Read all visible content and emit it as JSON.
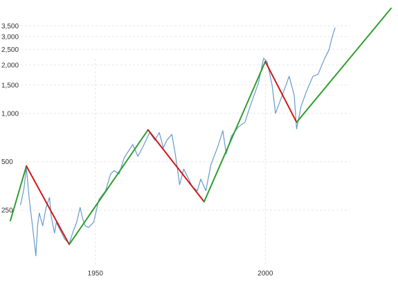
{
  "chart_data": {
    "type": "line",
    "title": "",
    "xlabel": "",
    "ylabel": "",
    "y_scale": "log",
    "xlim": [
      1925,
      2037
    ],
    "ylim": [
      115,
      4500
    ],
    "grid": true,
    "x_ticks": [
      {
        "value": 1950,
        "label": "1950"
      },
      {
        "value": 2000,
        "label": "2000"
      }
    ],
    "y_ticks": [
      {
        "value": 250,
        "label": "250"
      },
      {
        "value": 500,
        "label": "500"
      },
      {
        "value": 1000,
        "label": "1,000"
      },
      {
        "value": 1500,
        "label": "1,500"
      },
      {
        "value": 2000,
        "label": "2,000"
      },
      {
        "value": 2500,
        "label": "2,500"
      },
      {
        "value": 3000,
        "label": "3,000"
      },
      {
        "value": 3500,
        "label": "3,500"
      }
    ],
    "series": [
      {
        "color": "#6699cc",
        "x": [
          1928,
          1929,
          1929.7,
          1930.5,
          1931.5,
          1932.5,
          1933,
          1933.5,
          1934.5,
          1935.5,
          1936.5,
          1937,
          1938,
          1938.5,
          1939.5,
          1941,
          1942.3,
          1943.5,
          1944.5,
          1945.5,
          1946.3,
          1947,
          1948,
          1949.5,
          1951,
          1953,
          1954.5,
          1955.5,
          1957,
          1958.5,
          1961,
          1962.5,
          1964,
          1966,
          1967.5,
          1968.8,
          1970,
          1971,
          1972.5,
          1973.5,
          1974.8,
          1976,
          1977.5,
          1978.5,
          1980,
          1981,
          1982.5,
          1984,
          1986,
          1987.5,
          1988.5,
          1990,
          1992,
          1994,
          1995.5,
          1998,
          1999.5,
          2000.5,
          2002,
          2003,
          2005,
          2007,
          2008.5,
          2009.2,
          2010.5,
          2012,
          2014,
          2015.5,
          2017.5,
          2018.8,
          2019.5,
          2020.5
        ],
        "values": [
          270,
          340,
          460,
          300,
          200,
          130,
          200,
          240,
          200,
          260,
          300,
          230,
          180,
          210,
          190,
          165,
          155,
          185,
          210,
          260,
          220,
          200,
          195,
          210,
          290,
          330,
          420,
          440,
          420,
          530,
          640,
          540,
          620,
          760,
          680,
          760,
          610,
          680,
          740,
          560,
          360,
          450,
          390,
          350,
          330,
          390,
          330,
          480,
          620,
          780,
          560,
          720,
          820,
          880,
          1100,
          1550,
          2200,
          2100,
          1500,
          1000,
          1300,
          1700,
          1300,
          800,
          1100,
          1350,
          1700,
          1750,
          2200,
          2500,
          2900,
          3400
        ]
      },
      {
        "color": "#2e9e2e",
        "x": [
          1925,
          1929.7
        ],
        "values": [
          215,
          470
        ]
      },
      {
        "color": "#d11515",
        "x": [
          1929.7,
          1942.3
        ],
        "values": [
          470,
          153
        ]
      },
      {
        "color": "#2e9e2e",
        "x": [
          1942.3,
          1965.5
        ],
        "values": [
          153,
          790
        ]
      },
      {
        "color": "#d11515",
        "x": [
          1965.5,
          1982
        ],
        "values": [
          790,
          282
        ]
      },
      {
        "color": "#2e9e2e",
        "x": [
          1982,
          2000
        ],
        "values": [
          282,
          2100
        ]
      },
      {
        "color": "#d11515",
        "x": [
          2000,
          2009.2
        ],
        "values": [
          2100,
          880
        ]
      },
      {
        "color": "#2e9e2e",
        "x": [
          2009.2,
          2037
        ],
        "values": [
          880,
          4500
        ]
      }
    ]
  }
}
